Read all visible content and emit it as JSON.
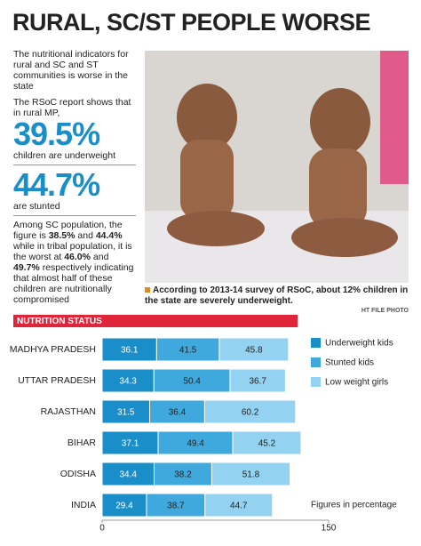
{
  "header": {
    "title": "RURAL, SC/ST PEOPLE WORSE"
  },
  "sidebar": {
    "intro": "The nutritional indicators for rural and SC and ST communities is worse in the state",
    "report": "The RSoC report shows that in rural MP,",
    "stat1": "39.5%",
    "stat1_caption": "children are underweight",
    "stat2": "44.7%",
    "stat2_caption": "are stunted",
    "details": [
      "Among SC population, the figure is ",
      "38.5%",
      " and ",
      "44.4%",
      " while in tribal population, it is the worst at ",
      "46.0%",
      " and ",
      "49.7%",
      " respectively indicating that almost half of these children are nutritionally compromised"
    ]
  },
  "photo_caption": {
    "text": "According to 2013-14 survey of RSoC, about 12% children in the state are severely underweight.",
    "credit": "HT FILE PHOTO"
  },
  "chart_data": {
    "type": "stacked-barh",
    "title": "NUTRITION STATUS",
    "categories": [
      "MADHYA PRADESH",
      "UTTAR PRADESH",
      "RAJASTHAN",
      "BIHAR",
      "ODISHA",
      "INDIA"
    ],
    "series": [
      {
        "name": "Underweight kids",
        "color": "#1a8ec8",
        "values": [
          36.1,
          34.3,
          31.5,
          37.1,
          34.4,
          29.4
        ]
      },
      {
        "name": "Stunted kids",
        "color": "#3fa9dd",
        "values": [
          41.5,
          50.4,
          36.4,
          49.4,
          38.2,
          38.7
        ]
      },
      {
        "name": "Low weight girls",
        "color": "#93d2f0",
        "values": [
          45.8,
          36.7,
          60.2,
          45.2,
          51.8,
          44.7
        ]
      }
    ],
    "xlim": [
      0,
      150
    ],
    "xticks": [
      0,
      150
    ],
    "note": "Figures in percentage"
  }
}
